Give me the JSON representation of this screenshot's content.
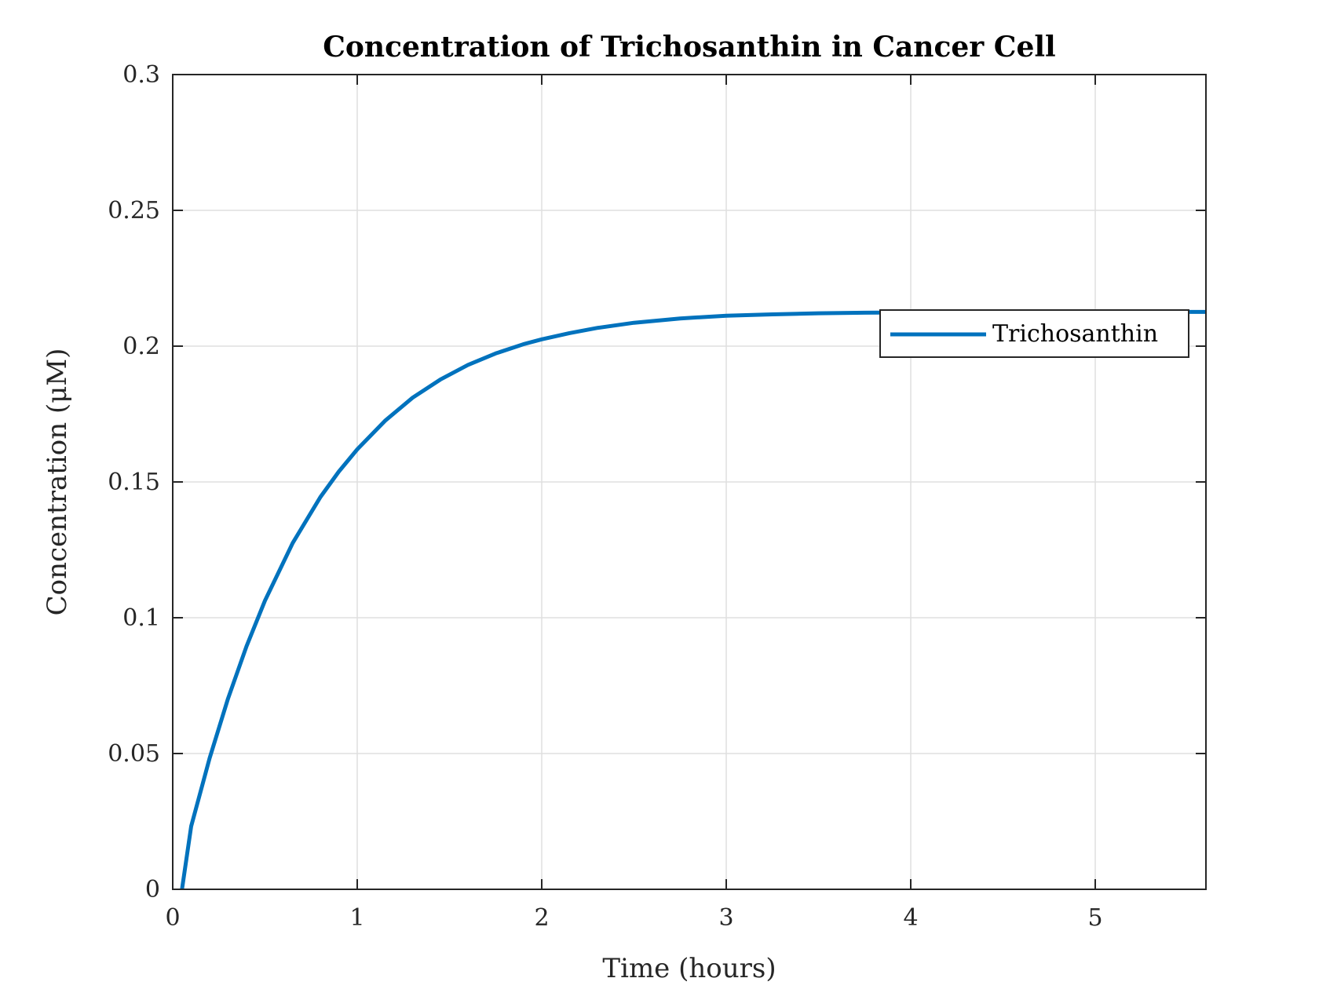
{
  "chart_data": {
    "type": "line",
    "title": "Concentration of Trichosanthin in Cancer Cell",
    "xlabel": "Time (hours)",
    "ylabel": "Concentration (μM)",
    "xlim": [
      0,
      5.6
    ],
    "ylim": [
      0,
      0.3
    ],
    "xticks": [
      0,
      1,
      2,
      3,
      4,
      5
    ],
    "xtick_labels": [
      "0",
      "1",
      "2",
      "3",
      "4",
      "5"
    ],
    "yticks": [
      0,
      0.05,
      0.1,
      0.15,
      0.2,
      0.25,
      0.3
    ],
    "ytick_labels": [
      "0",
      "0.05",
      "0.1",
      "0.15",
      "0.2",
      "0.25",
      "0.3"
    ],
    "grid": true,
    "legend_position": "upper-right",
    "series": [
      {
        "name": "Trichosanthin",
        "color": "#0072bd",
        "x": [
          0.05,
          0.1,
          0.2,
          0.3,
          0.4,
          0.5,
          0.65,
          0.8,
          0.9,
          1.0,
          1.15,
          1.3,
          1.45,
          1.6,
          1.75,
          1.9,
          2.0,
          2.15,
          2.3,
          2.5,
          2.75,
          3.0,
          3.25,
          3.5,
          3.75,
          4.0,
          4.25,
          4.5,
          4.75,
          5.0,
          5.25,
          5.6
        ],
        "y": [
          0.0,
          0.0232,
          0.0483,
          0.0703,
          0.0895,
          0.1063,
          0.1275,
          0.1444,
          0.1538,
          0.162,
          0.1725,
          0.181,
          0.1877,
          0.1931,
          0.1973,
          0.2007,
          0.2025,
          0.2048,
          0.2067,
          0.2086,
          0.2102,
          0.2112,
          0.2117,
          0.2121,
          0.2123,
          0.2124,
          0.2125,
          0.2125,
          0.2126,
          0.2126,
          0.2126,
          0.2126
        ]
      }
    ]
  }
}
